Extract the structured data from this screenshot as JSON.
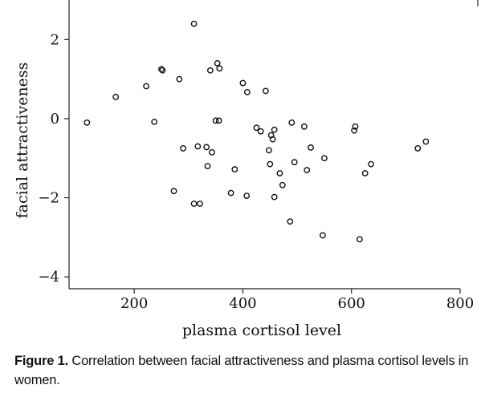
{
  "chart_data": {
    "type": "scatter",
    "xlabel": "plasma cortisol level",
    "ylabel": "facial attractiveness",
    "xlim": [
      80,
      800
    ],
    "ylim": [
      -4.3,
      3.0
    ],
    "x_ticks": [
      200,
      400,
      600,
      800
    ],
    "y_ticks": [
      2,
      0,
      -2,
      -4
    ],
    "x_tick_labels": [
      "200",
      "400",
      "600",
      "800"
    ],
    "y_tick_labels": [
      "2",
      "0",
      "−2",
      "−4"
    ],
    "grid": false,
    "legend": "none",
    "marker": "open-circle",
    "marker_color": "#111111",
    "points": [
      {
        "x": 113,
        "y": -0.1
      },
      {
        "x": 166,
        "y": 0.55
      },
      {
        "x": 222,
        "y": 0.82
      },
      {
        "x": 237,
        "y": -0.08
      },
      {
        "x": 250,
        "y": 1.25
      },
      {
        "x": 252,
        "y": 1.22
      },
      {
        "x": 273,
        "y": -1.83
      },
      {
        "x": 283,
        "y": 1.0
      },
      {
        "x": 290,
        "y": -0.75
      },
      {
        "x": 310,
        "y": 2.4
      },
      {
        "x": 310,
        "y": -2.15
      },
      {
        "x": 317,
        "y": -0.7
      },
      {
        "x": 321,
        "y": -2.15
      },
      {
        "x": 333,
        "y": -0.72
      },
      {
        "x": 335,
        "y": -1.2
      },
      {
        "x": 340,
        "y": 1.22
      },
      {
        "x": 343,
        "y": -0.85
      },
      {
        "x": 350,
        "y": -0.05
      },
      {
        "x": 353,
        "y": 1.4
      },
      {
        "x": 356,
        "y": -0.05
      },
      {
        "x": 357,
        "y": 1.27
      },
      {
        "x": 378,
        "y": -1.88
      },
      {
        "x": 385,
        "y": -1.28
      },
      {
        "x": 400,
        "y": 0.9
      },
      {
        "x": 407,
        "y": -1.95
      },
      {
        "x": 408,
        "y": 0.67
      },
      {
        "x": 425,
        "y": -0.23
      },
      {
        "x": 433,
        "y": -0.32
      },
      {
        "x": 442,
        "y": 0.7
      },
      {
        "x": 448,
        "y": -0.8
      },
      {
        "x": 450,
        "y": -1.15
      },
      {
        "x": 452,
        "y": -0.42
      },
      {
        "x": 455,
        "y": -0.52
      },
      {
        "x": 458,
        "y": -0.28
      },
      {
        "x": 458,
        "y": -1.98
      },
      {
        "x": 468,
        "y": -1.38
      },
      {
        "x": 473,
        "y": -1.68
      },
      {
        "x": 487,
        "y": -2.6
      },
      {
        "x": 490,
        "y": -0.1
      },
      {
        "x": 495,
        "y": -1.1
      },
      {
        "x": 513,
        "y": -0.2
      },
      {
        "x": 518,
        "y": -1.3
      },
      {
        "x": 525,
        "y": -0.73
      },
      {
        "x": 547,
        "y": -2.95
      },
      {
        "x": 550,
        "y": -1.0
      },
      {
        "x": 605,
        "y": -0.3
      },
      {
        "x": 607,
        "y": -0.2
      },
      {
        "x": 615,
        "y": -3.05
      },
      {
        "x": 625,
        "y": -1.38
      },
      {
        "x": 636,
        "y": -1.15
      },
      {
        "x": 722,
        "y": -0.75
      },
      {
        "x": 737,
        "y": -0.58
      }
    ]
  },
  "caption": {
    "label": "Figure 1.",
    "text": " Correlation between facial attractiveness and plasma cortisol levels in women."
  }
}
